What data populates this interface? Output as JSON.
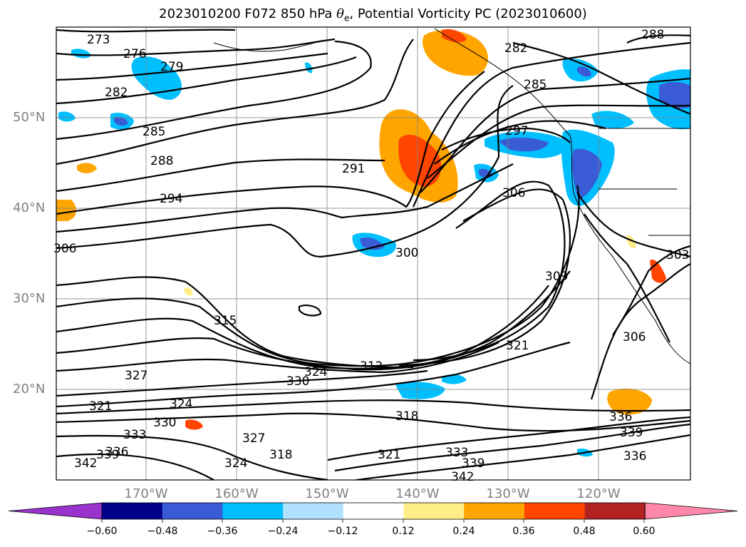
{
  "title": {
    "prefix": "2023010200 F072 850 hPa ",
    "theta": "θ",
    "theta_sub": "e",
    "suffix": ", Potential Vorticity PC (2023010600)"
  },
  "map": {
    "lat_labels": [
      "50°N",
      "40°N",
      "30°N",
      "20°N"
    ],
    "lon_labels": [
      "170°W",
      "160°W",
      "150°W",
      "140°W",
      "130°W",
      "120°W"
    ],
    "contour_labels": [
      "273",
      "276",
      "279",
      "282",
      "285",
      "288",
      "294",
      "291",
      "306",
      "300",
      "297",
      "282",
      "285",
      "288",
      "309",
      "303",
      "306",
      "315",
      "321",
      "312",
      "324",
      "327",
      "330",
      "318",
      "321",
      "324",
      "327",
      "333",
      "336",
      "339",
      "342",
      "330",
      "333",
      "339",
      "342",
      "336",
      "339",
      "336",
      "321",
      "324",
      "318",
      "306"
    ]
  },
  "colorbar": {
    "ticks": [
      "−0.60",
      "−0.48",
      "−0.36",
      "−0.24",
      "−0.12",
      "0.12",
      "0.24",
      "0.36",
      "0.48",
      "0.60"
    ],
    "colors": [
      "#9933cc",
      "#00008b",
      "#3a5bd6",
      "#00bfff",
      "#b0e2ff",
      "#ffffff",
      "#ffee88",
      "#ffa500",
      "#ff4500",
      "#b22222",
      "#ff88aa",
      "#ff88aa"
    ]
  }
}
